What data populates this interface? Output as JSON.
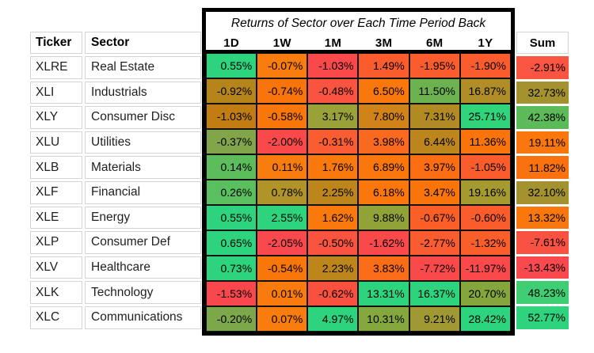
{
  "chart_data": {
    "type": "heatmap",
    "title": "Returns of Sector over Each Time Period Back",
    "columns": {
      "ticker": "Ticker",
      "sector": "Sector",
      "sum": "Sum"
    },
    "periods": [
      "1D",
      "1W",
      "1M",
      "3M",
      "6M",
      "1Y"
    ],
    "value_suffix": "%",
    "legend_note": "cell background encodes return per column: red = lowest, orange/olive = middle, green = highest",
    "rows": [
      {
        "ticker": "XLRE",
        "sector": "Real Estate",
        "values": [
          0.55,
          -0.07,
          -1.03,
          1.49,
          -1.95,
          -1.9
        ],
        "colors": [
          "#2ed47d",
          "#f97c0e",
          "#f9494b",
          "#fa5c2e",
          "#fa5c2e",
          "#fa5c2e"
        ],
        "sum": -2.91,
        "sum_color": "#f95540"
      },
      {
        "ticker": "XLI",
        "sector": "Industrials",
        "values": [
          -0.92,
          -0.74,
          -0.48,
          6.5,
          11.5,
          16.87
        ],
        "colors": [
          "#b5851c",
          "#f9740a",
          "#fa5340",
          "#f9780d",
          "#6cb251",
          "#b08e27"
        ],
        "sum": 32.73,
        "sum_color": "#a3922e"
      },
      {
        "ticker": "XLY",
        "sector": "Consumer Disc",
        "values": [
          -1.03,
          -0.58,
          3.17,
          7.8,
          7.31,
          25.71
        ],
        "colors": [
          "#c17c12",
          "#f9760b",
          "#9aa138",
          "#cf8318",
          "#b18a24",
          "#2fd47b"
        ],
        "sum": 42.38,
        "sum_color": "#5dba58"
      },
      {
        "ticker": "XLU",
        "sector": "Utilities",
        "values": [
          -0.37,
          -2.0,
          -0.31,
          3.98,
          6.44,
          11.36
        ],
        "colors": [
          "#82a44b",
          "#f9494b",
          "#fa5d31",
          "#fa6920",
          "#bc861d",
          "#f9740b"
        ],
        "sum": 19.11,
        "sum_color": "#f9770c"
      },
      {
        "ticker": "XLB",
        "sector": "Materials",
        "values": [
          0.14,
          0.11,
          1.76,
          6.89,
          3.97,
          -1.05
        ],
        "colors": [
          "#5dbd5c",
          "#f97c0e",
          "#f9790d",
          "#f9770c",
          "#fa6d12",
          "#fa5c2c"
        ],
        "sum": 11.82,
        "sum_color": "#fa7210"
      },
      {
        "ticker": "XLF",
        "sector": "Financial",
        "values": [
          0.26,
          0.78,
          2.25,
          6.18,
          3.47,
          19.16
        ],
        "colors": [
          "#5abf5e",
          "#b09329",
          "#bc861c",
          "#f9770c",
          "#f9750b",
          "#a59a30"
        ],
        "sum": 32.1,
        "sum_color": "#a3922e"
      },
      {
        "ticker": "XLE",
        "sector": "Energy",
        "values": [
          0.55,
          2.55,
          1.62,
          9.88,
          -0.67,
          -0.6
        ],
        "colors": [
          "#2ed47d",
          "#2ed47d",
          "#f9790d",
          "#90a238",
          "#fa5f28",
          "#fa5c2c"
        ],
        "sum": 13.32,
        "sum_color": "#f9770c"
      },
      {
        "ticker": "XLP",
        "sector": "Consumer Def",
        "values": [
          0.65,
          -2.05,
          -0.5,
          -1.62,
          -2.77,
          -1.32
        ],
        "colors": [
          "#2ed47d",
          "#f9494e",
          "#fa5440",
          "#f9494b",
          "#fa5c31",
          "#fa5e2a"
        ],
        "sum": -7.61,
        "sum_color": "#f95142"
      },
      {
        "ticker": "XLV",
        "sector": "Healthcare",
        "values": [
          0.73,
          -0.54,
          2.23,
          3.83,
          -7.72,
          -11.97
        ],
        "colors": [
          "#2ed47d",
          "#f9760b",
          "#bc861c",
          "#fa6d18",
          "#f9494b",
          "#f9494b"
        ],
        "sum": -13.43,
        "sum_color": "#f9494e"
      },
      {
        "ticker": "XLK",
        "sector": "Technology",
        "values": [
          -1.53,
          0.01,
          -0.62,
          13.31,
          16.37,
          20.7
        ],
        "colors": [
          "#f9474c",
          "#f97b0d",
          "#fa513f",
          "#2ed47d",
          "#2ed47d",
          "#85a63d"
        ],
        "sum": 48.23,
        "sum_color": "#3fce73"
      },
      {
        "ticker": "XLC",
        "sector": "Communications",
        "values": [
          -0.2,
          0.07,
          4.97,
          10.31,
          9.21,
          28.42
        ],
        "colors": [
          "#7ca74a",
          "#f97c0e",
          "#2ed47d",
          "#84a83e",
          "#a09933",
          "#2ed47d"
        ],
        "sum": 52.77,
        "sum_color": "#2ed47d"
      }
    ]
  },
  "style": {
    "background": "#ffffff",
    "box_border": "#000000",
    "grid_line": "#d4d4d4",
    "text": "#000000",
    "color_scale": {
      "min": "#f9494b",
      "mid": "#f9770c",
      "mid2": "#a3922e",
      "max": "#2ed47d"
    }
  }
}
